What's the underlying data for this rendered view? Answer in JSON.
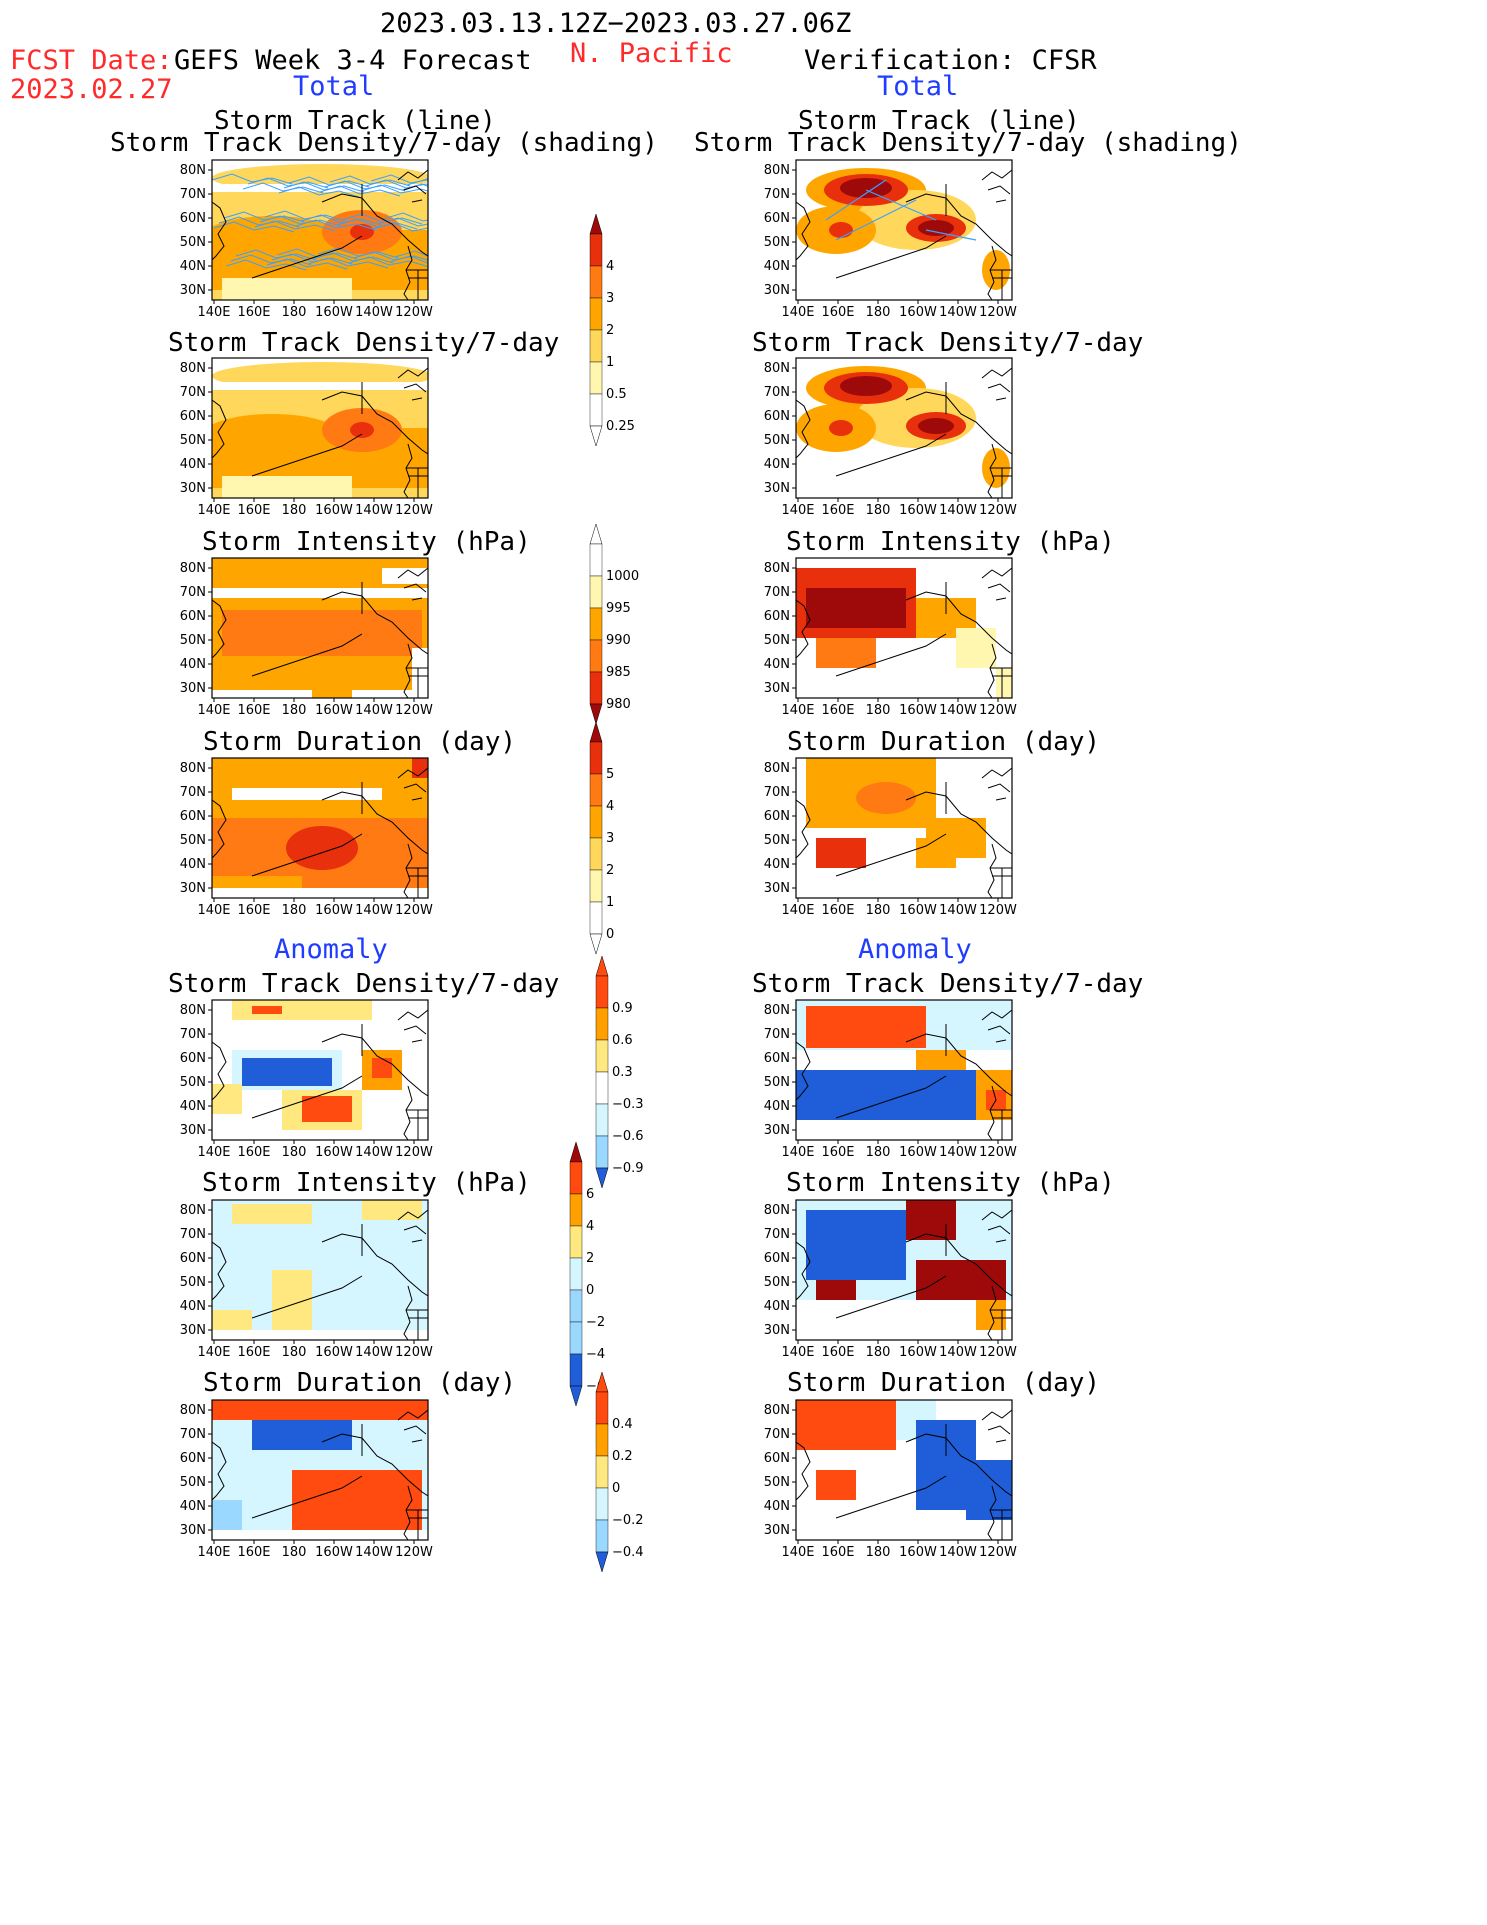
{
  "header": {
    "period": "2023.03.13.12Z−2023.03.27.06Z",
    "fcst_label": "FCST Date:",
    "fcst_date": "2023.02.27",
    "forecast_title": "GEFS Week 3-4 Forecast",
    "region": "N. Pacific",
    "verification_title": "Verification: CFSR",
    "total_left": "Total",
    "total_right": "Total",
    "anomaly_left": "Anomaly",
    "anomaly_right": "Anomaly"
  },
  "titles": {
    "track_line": "Storm Track (line)",
    "track_shading": "Storm Track Density/7-day (shading)",
    "density": "Storm Track Density/7-day",
    "intensity": "Storm Intensity (hPa)",
    "duration": "Storm Duration (day)"
  },
  "axes": {
    "lat_ticks": [
      "80N",
      "70N",
      "60N",
      "50N",
      "40N",
      "30N"
    ],
    "lon_ticks": [
      "140E",
      "160E",
      "180",
      "160W",
      "140W",
      "120W"
    ]
  },
  "colorbars": {
    "density_total": [
      "4",
      "3",
      "2",
      "1",
      "0.5",
      "0.25"
    ],
    "intensity_total": [
      "1000",
      "995",
      "990",
      "985",
      "980"
    ],
    "duration_total": [
      "5",
      "4",
      "3",
      "2",
      "1",
      "0"
    ],
    "density_anom": [
      "0.9",
      "0.6",
      "0.3",
      "−0.3",
      "−0.6",
      "−0.9"
    ],
    "intensity_anom": [
      "6",
      "4",
      "2",
      "0",
      "−2",
      "−4",
      "−6"
    ],
    "duration_anom": [
      "0.4",
      "0.2",
      "0",
      "−0.2",
      "−0.4"
    ]
  },
  "colors": {
    "seq": [
      "#fff6b0",
      "#ffd75a",
      "#ffa500",
      "#ff7a12",
      "#e8300c",
      "#9e0a0a"
    ],
    "div_pos": [
      "#ffe880",
      "#ffa000",
      "#ff4a10"
    ],
    "div_neg": [
      "#d6f6ff",
      "#9ad8ff",
      "#1f5ed8"
    ],
    "track_line": "#3ba0ff",
    "region": "#ff2a2a",
    "total_label": "#1f3cff"
  }
}
